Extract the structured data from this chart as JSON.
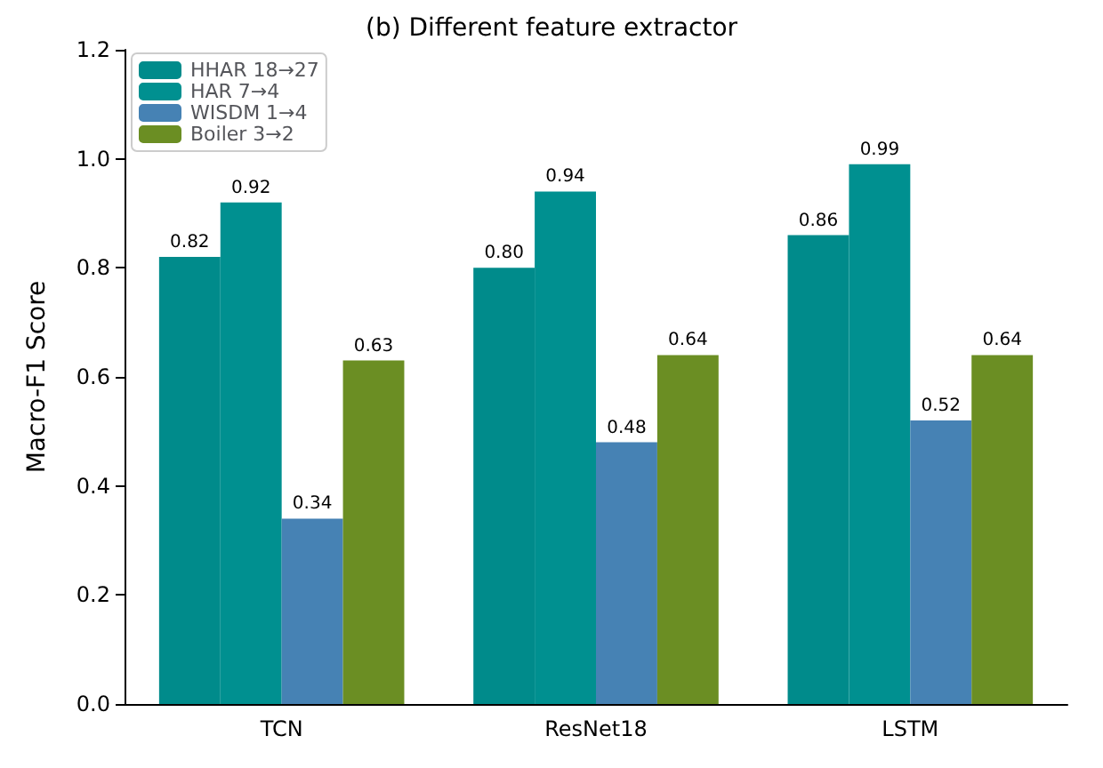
{
  "chart_data": {
    "type": "bar",
    "title": "(b) Different feature extractor",
    "ylabel": "Macro-F1 Score",
    "categories": [
      "TCN",
      "ResNet18",
      "LSTM"
    ],
    "series": [
      {
        "name": "HHAR 18→27",
        "color": "#008b8b",
        "values": [
          0.82,
          0.8,
          0.86
        ],
        "value_labels": [
          "0.82",
          "0.80",
          "0.86"
        ]
      },
      {
        "name": "HAR 7→4",
        "color": "#009090",
        "values": [
          0.92,
          0.94,
          0.99
        ],
        "value_labels": [
          "0.92",
          "0.94",
          "0.99"
        ]
      },
      {
        "name": "WISDM 1→4",
        "color": "#4682b4",
        "values": [
          0.34,
          0.48,
          0.52
        ],
        "value_labels": [
          "0.34",
          "0.48",
          "0.52"
        ]
      },
      {
        "name": "Boiler 3→2",
        "color": "#6b8e23",
        "values": [
          0.63,
          0.64,
          0.64
        ],
        "value_labels": [
          "0.63",
          "0.64",
          "0.64"
        ]
      }
    ],
    "ylim": [
      0,
      1.2
    ],
    "yticks": [
      {
        "value": 0,
        "label": "0.0"
      },
      0.2,
      0.4,
      0.6,
      0.8,
      {
        "value": 1,
        "label": "1.0"
      },
      1.2
    ],
    "legend": "top left",
    "grid": false
  }
}
